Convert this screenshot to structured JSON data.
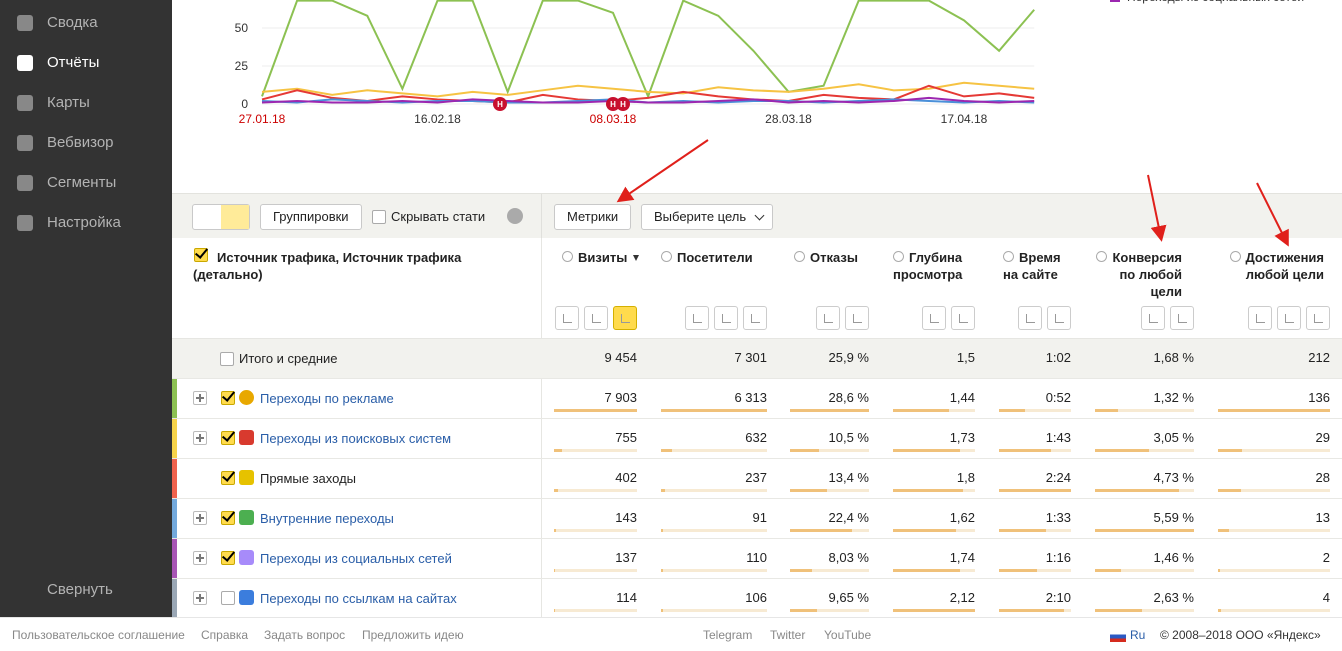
{
  "sidebar": {
    "items": [
      "Сводка",
      "Отчёты",
      "Карты",
      "Вебвизор",
      "Сегменты",
      "Настройка"
    ],
    "active": 1,
    "collapse": "Свернуть"
  },
  "chart_data": {
    "type": "line",
    "categories": [
      "27.01.18",
      null,
      null,
      null,
      null,
      "16.02.18",
      null,
      null,
      null,
      null,
      "08.03.18",
      null,
      null,
      null,
      null,
      "28.03.18",
      null,
      null,
      null,
      null,
      "17.04.18",
      null,
      null
    ],
    "highlight_color": "#cc0000",
    "highlighted": [
      0,
      10
    ],
    "series": [
      {
        "color": "#8cc152",
        "values": [
          5,
          68,
          68,
          58,
          10,
          68,
          68,
          8,
          68,
          68,
          60,
          5,
          68,
          58,
          35,
          8,
          12,
          68,
          68,
          68,
          55,
          35,
          62
        ]
      },
      {
        "color": "#f6c343",
        "values": [
          8,
          10,
          6,
          9,
          7,
          5,
          8,
          6,
          9,
          12,
          10,
          8,
          7,
          11,
          9,
          8,
          10,
          13,
          9,
          10,
          14,
          12,
          10
        ]
      },
      {
        "color": "#e53935",
        "values": [
          3,
          9,
          4,
          2,
          5,
          3,
          2,
          1,
          6,
          3,
          2,
          4,
          8,
          5,
          3,
          2,
          6,
          4,
          3,
          12,
          5,
          7,
          4
        ]
      },
      {
        "color": "#4a90d9",
        "values": [
          2,
          1,
          3,
          2,
          1,
          2,
          2,
          1,
          1,
          2,
          3,
          1,
          2,
          1,
          2,
          2,
          1,
          2,
          3,
          2,
          1,
          2,
          1
        ]
      },
      {
        "name": "Переходы из социальных сетей",
        "color": "#9c27b0",
        "values": [
          1,
          2,
          1,
          1,
          2,
          1,
          3,
          2,
          1,
          1,
          2,
          1,
          1,
          2,
          3,
          1,
          2,
          1,
          2,
          4,
          2,
          1,
          2
        ]
      }
    ],
    "annotations": [
      "Н",
      "Н",
      "Н"
    ],
    "ylim": [
      0,
      68
    ],
    "yticks": [
      0,
      25,
      50
    ],
    "grid": true
  },
  "toolbar": {
    "groupings": "Группировки",
    "hide_stats": "Скрывать стати",
    "metrics": "Метрики",
    "goal": "Выберите цель"
  },
  "table": {
    "dimension_header": "Источник трафика, Источник трафика (детально)",
    "columns": [
      "Визиты",
      "Посетители",
      "Отказы",
      "Глубина просмотра",
      "Время на сайте",
      "Конверсия по любой цели",
      "Достижения любой цели"
    ],
    "sort_column": 0,
    "totals": {
      "label": "Итого и средние",
      "values": [
        "9 454",
        "7 301",
        "25,9 %",
        "1,5",
        "1:02",
        "1,68 %",
        "212"
      ]
    },
    "rows": [
      {
        "label": "Переходы по рекламе",
        "color": "#8cc152",
        "checked": true,
        "expandable": true,
        "values": [
          "7 903",
          "6 313",
          "28,6 %",
          "1,44",
          "0:52",
          "1,32 %",
          "136"
        ]
      },
      {
        "label": "Переходы из поисковых систем",
        "color": "#f6d34a",
        "checked": true,
        "expandable": true,
        "values": [
          "755",
          "632",
          "10,5 %",
          "1,73",
          "1:43",
          "3,05 %",
          "29"
        ]
      },
      {
        "label": "Прямые заходы",
        "color": "#f0624d",
        "checked": true,
        "expandable": false,
        "values": [
          "402",
          "237",
          "13,4 %",
          "1,8",
          "2:24",
          "4,73 %",
          "28"
        ]
      },
      {
        "label": "Внутренние переходы",
        "color": "#73a9dc",
        "checked": true,
        "expandable": true,
        "values": [
          "143",
          "91",
          "22,4 %",
          "1,62",
          "1:33",
          "5,59 %",
          "13"
        ]
      },
      {
        "label": "Переходы из социальных сетей",
        "color": "#a855b5",
        "checked": true,
        "expandable": true,
        "values": [
          "137",
          "110",
          "8,03 %",
          "1,74",
          "1:16",
          "1,46 %",
          "2"
        ]
      },
      {
        "label": "Переходы по ссылкам на сайтах",
        "color": "#9aa7b5",
        "checked": false,
        "expandable": true,
        "values": [
          "114",
          "106",
          "9,65 %",
          "2,12",
          "2:10",
          "2,63 %",
          "4"
        ]
      }
    ]
  },
  "footer": {
    "left": [
      "Пользовательское соглашение",
      "Справка",
      "Задать вопрос",
      "Предложить идею"
    ],
    "center": [
      "Telegram",
      "Twitter",
      "YouTube"
    ],
    "lang": "Ru",
    "copyright": "© 2008–2018 ООО «Яндекс»"
  }
}
